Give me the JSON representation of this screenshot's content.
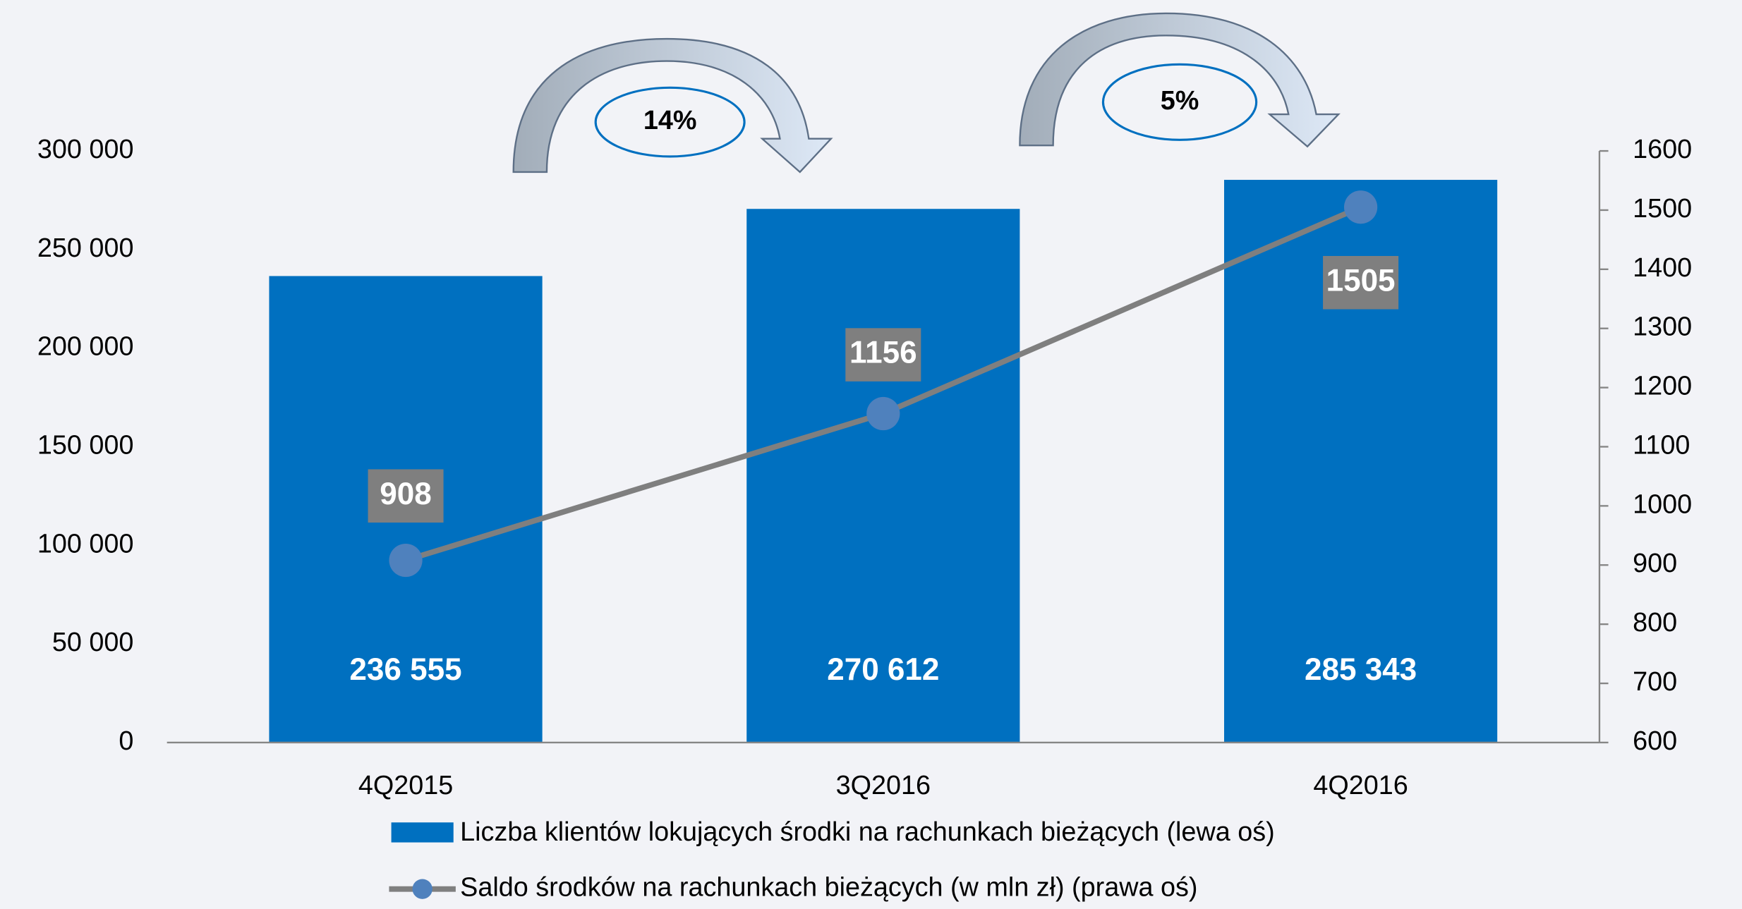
{
  "chart_data": {
    "type": "bar",
    "categories": [
      "4Q2015",
      "3Q2016",
      "4Q2016"
    ],
    "series": [
      {
        "name": "Liczba klientów lokujących środki na rachunkach bieżących (lewa oś)",
        "type": "bar",
        "color": "#0070c0",
        "values": [
          236555,
          270612,
          285343
        ],
        "value_labels": [
          "236 555",
          "270 612",
          "285 343"
        ]
      },
      {
        "name": "Saldo środków na rachunkach bieżących (w mln zł) (prawa oś)",
        "type": "line",
        "axis": "y2",
        "color": "#7f7f7f",
        "marker_color": "#4f81bd",
        "values": [
          908,
          1156,
          1505
        ]
      }
    ],
    "ylim": [
      0,
      300000
    ],
    "yticks": [
      0,
      {
        "value": 50000,
        "label": "50 000"
      },
      {
        "value": 100000,
        "label": "100 000"
      },
      {
        "value": 150000,
        "label": "150 000"
      },
      {
        "value": 200000,
        "label": "200 000"
      },
      {
        "value": 250000,
        "label": "250 000"
      },
      {
        "value": 300000,
        "label": "300 000"
      }
    ],
    "y2lim": [
      600,
      1600
    ],
    "y2ticks": [
      600,
      700,
      800,
      900,
      1000,
      1100,
      1200,
      1300,
      1400,
      1500,
      1600
    ],
    "annotations": [
      "14%",
      "5%"
    ],
    "legend": "bottom"
  }
}
